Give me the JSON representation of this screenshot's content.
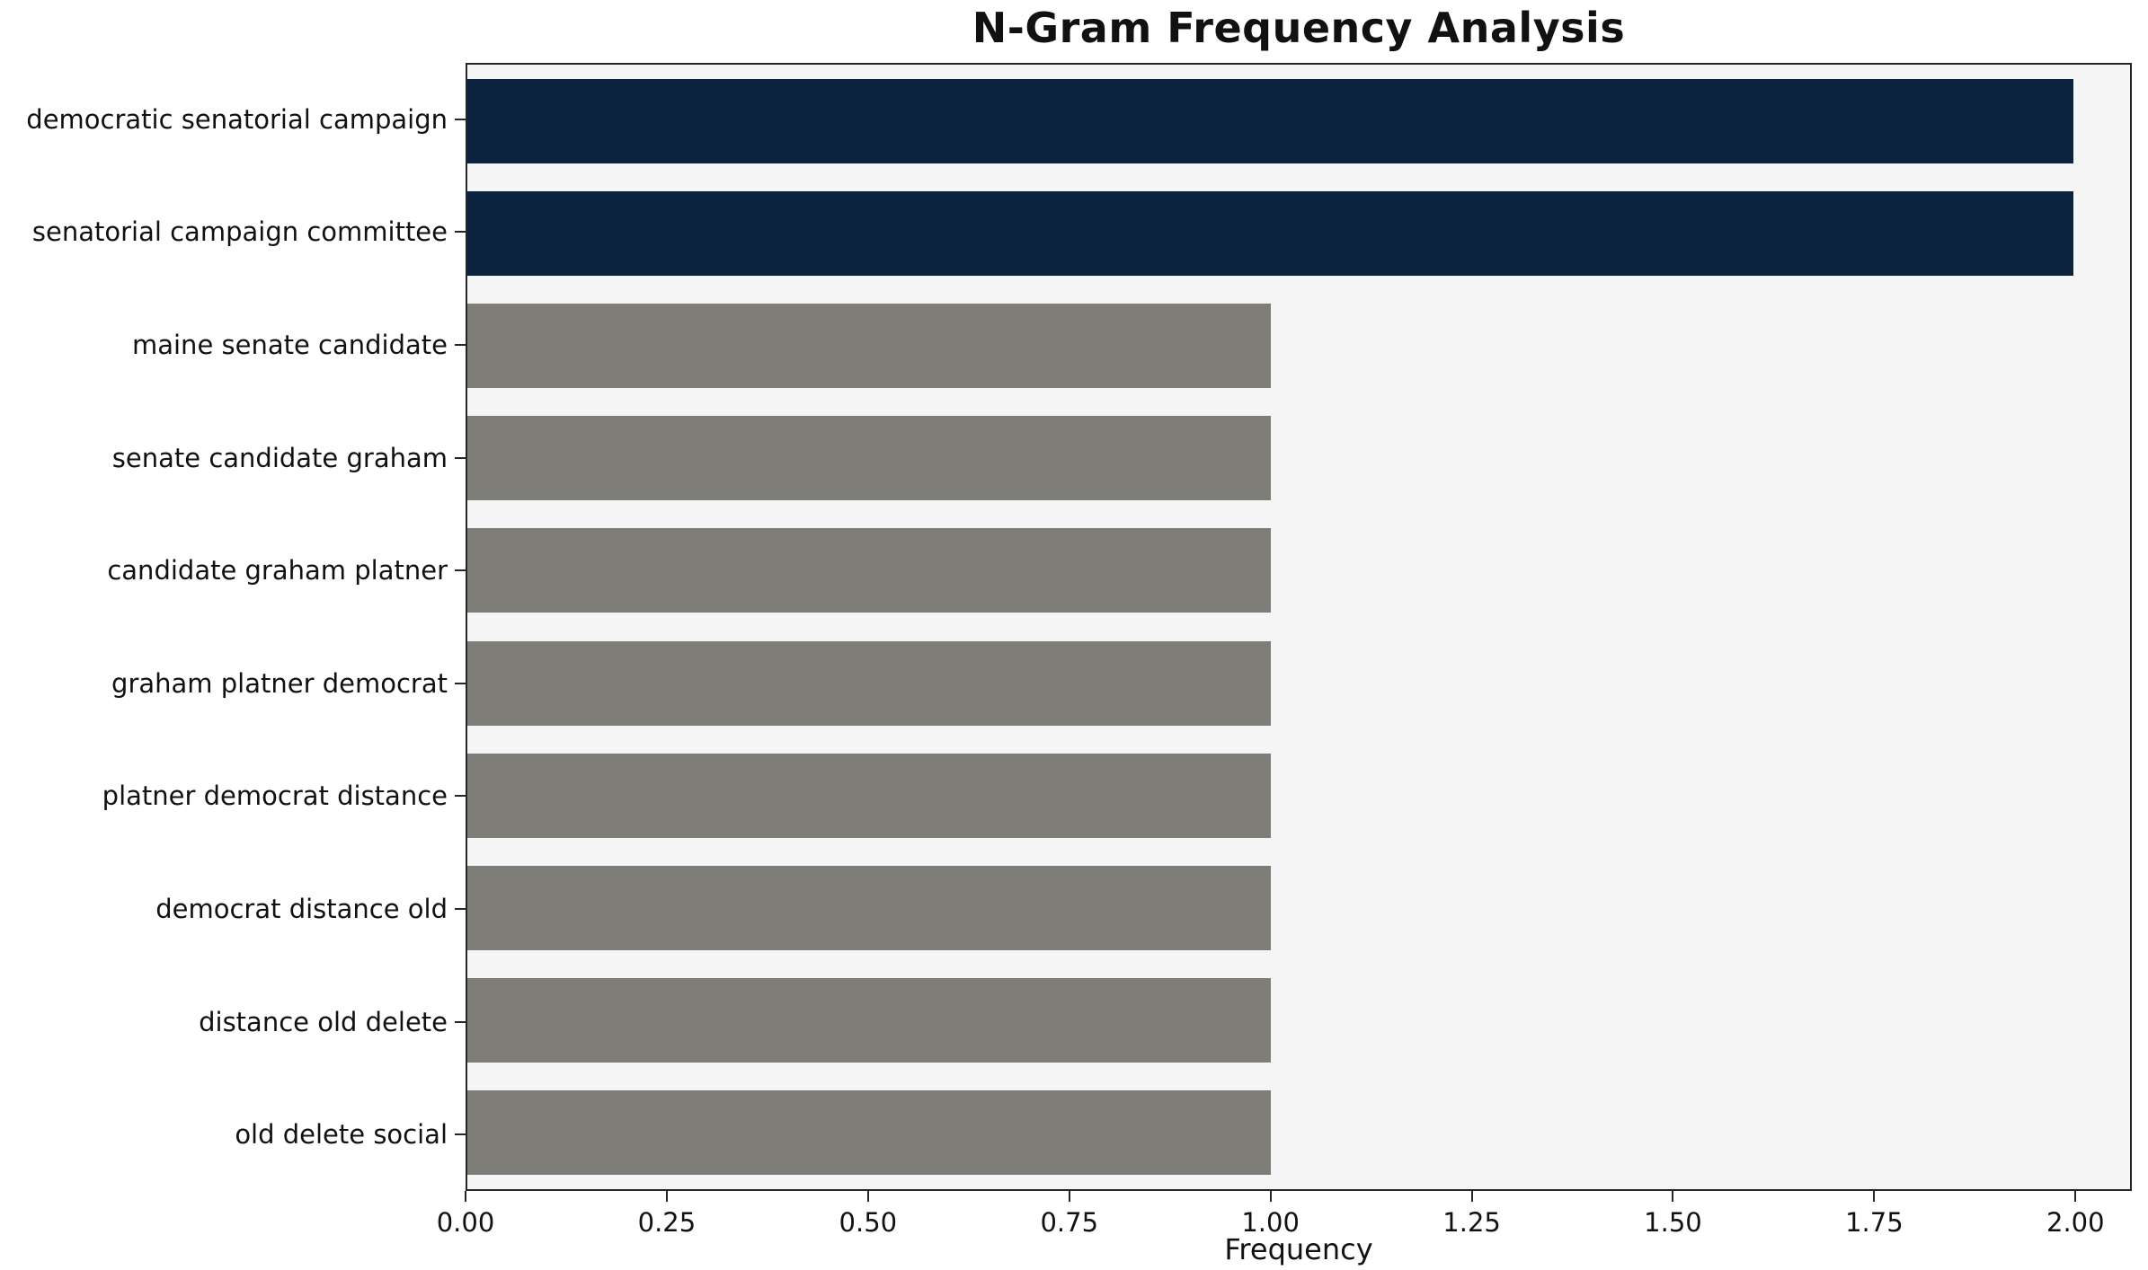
{
  "chart_data": {
    "type": "bar",
    "orientation": "horizontal",
    "title": "N-Gram Frequency Analysis",
    "xlabel": "Frequency",
    "ylabel": "",
    "categories": [
      "democratic senatorial campaign",
      "senatorial campaign committee",
      "maine senate candidate",
      "senate candidate graham",
      "candidate graham platner",
      "graham platner democrat",
      "platner democrat distance",
      "democrat distance old",
      "distance old delete",
      "old delete social"
    ],
    "values": [
      2,
      2,
      1,
      1,
      1,
      1,
      1,
      1,
      1,
      1
    ],
    "bar_colors": [
      "#0c2340",
      "#0c2340",
      "#7f7d77",
      "#7f7d77",
      "#7f7d77",
      "#7f7d77",
      "#7f7d77",
      "#7f7d77",
      "#7f7d77",
      "#7f7d77"
    ],
    "x_tick_labels": [
      "0.00",
      "0.25",
      "0.50",
      "0.75",
      "1.00",
      "1.25",
      "1.50",
      "1.75",
      "2.00"
    ],
    "x_tick_values": [
      0,
      0.25,
      0.5,
      0.75,
      1.0,
      1.25,
      1.5,
      1.75,
      2.0
    ],
    "xlim": [
      0,
      2.07
    ],
    "bar_band_fraction": 0.75,
    "plot_background": "#f5f5f5",
    "grid": false,
    "legend": null
  }
}
